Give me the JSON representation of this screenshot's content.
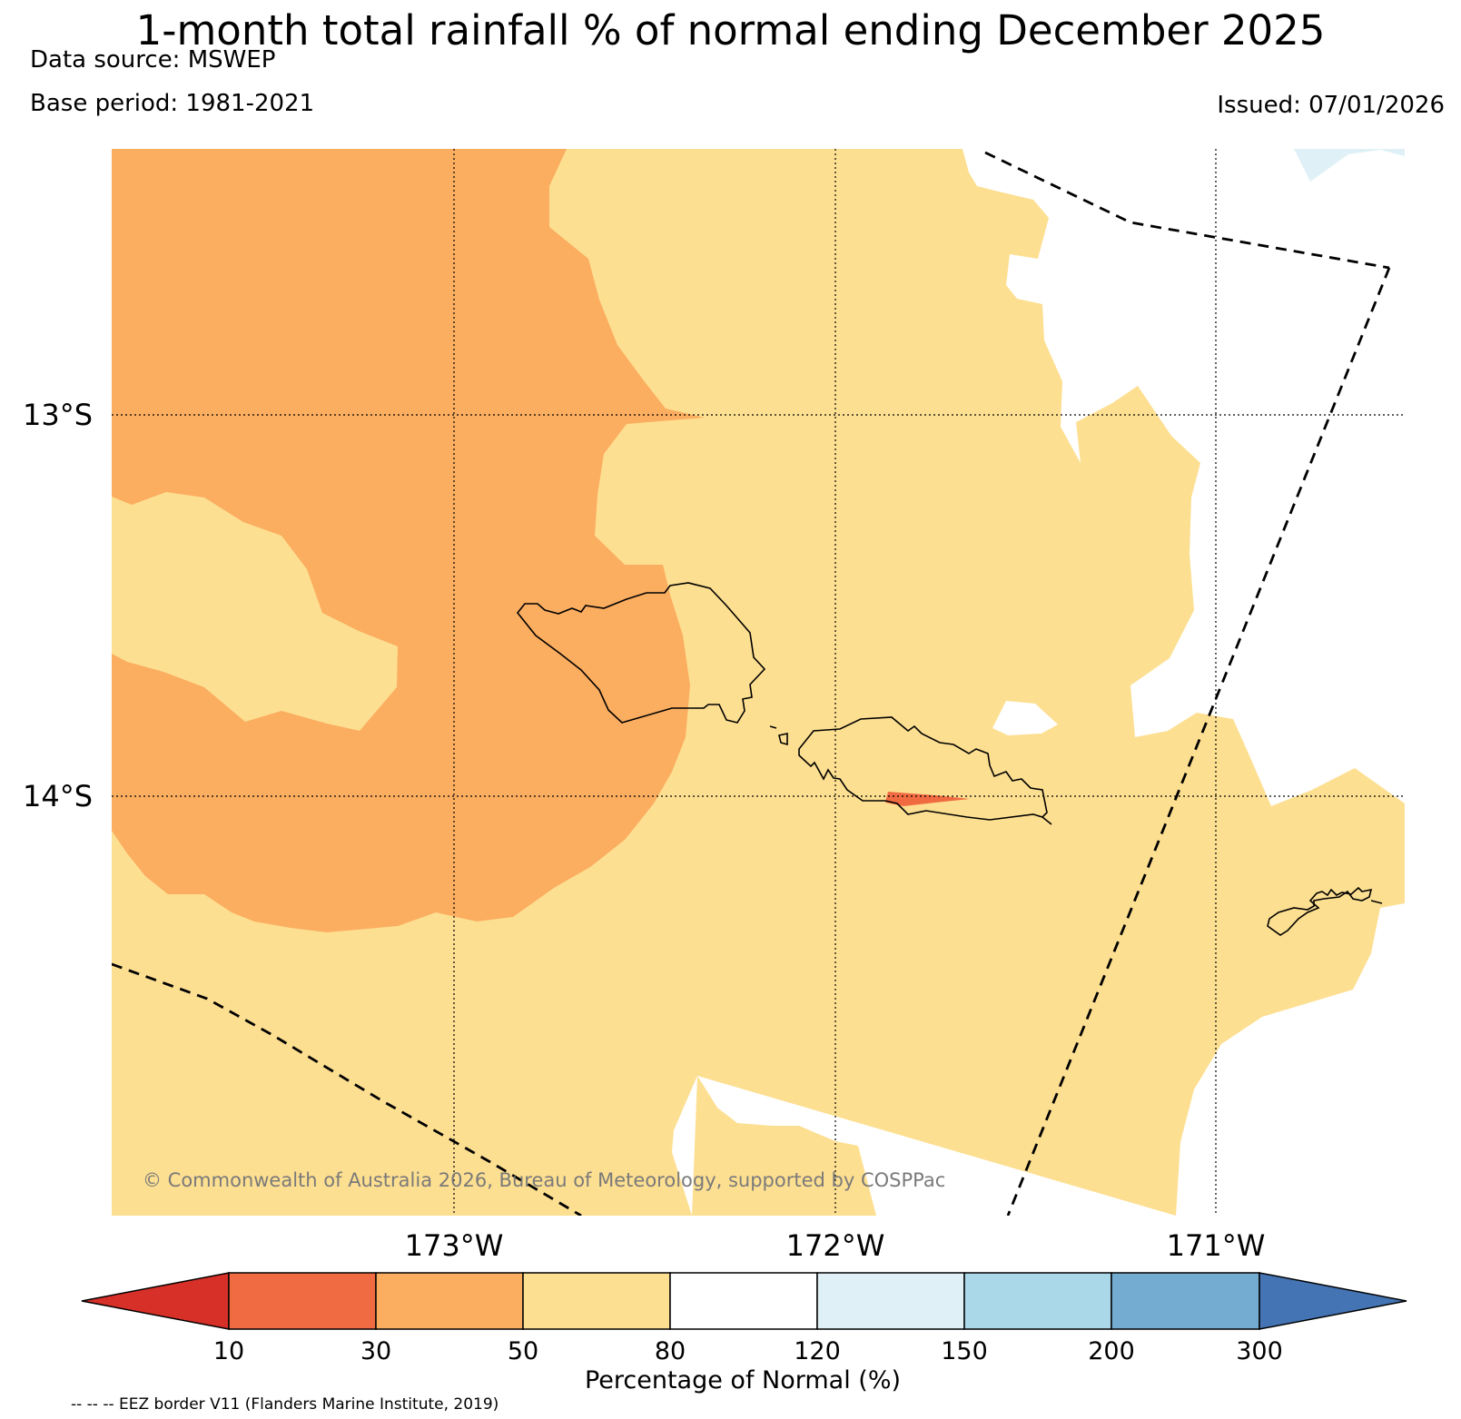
{
  "header": {
    "title": "1-month total rainfall % of normal ending December 2025",
    "data_source": "Data source: MSWEP",
    "base_period": "Base period: 1981-2021",
    "issued": "Issued: 07/01/2026"
  },
  "map": {
    "lat_labels": [
      "13°S",
      "14°S"
    ],
    "lon_labels": [
      "173°W",
      "172°W",
      "171°W"
    ],
    "copyright": "© Commonwealth of Australia 2026, Bureau of Meteorology, supported by COSPPac",
    "colors": {
      "class_50_80": "#fddf91",
      "class_30_50": "#fbad60",
      "class_10_30": "#f06b42",
      "class_120_150": "#dff1f6",
      "ocean_normal": "#ffffff",
      "coastline": "#000000",
      "gridline": "#000000"
    }
  },
  "colorbar": {
    "label": "Percentage of Normal (%)",
    "ticks": [
      "10",
      "30",
      "50",
      "80",
      "120",
      "150",
      "200",
      "300"
    ],
    "colors": {
      "below_10": "#d73028",
      "c10_30": "#f06b42",
      "c30_50": "#fbad60",
      "c50_80": "#fddf91",
      "c80_120": "#ffffff",
      "c120_150": "#dff1f6",
      "c150_200": "#abd8e8",
      "c200_300": "#74abd0",
      "above_300": "#4474b3"
    }
  },
  "footer": {
    "eez_note": "-- -- -- EEZ border V11 (Flanders Marine Institute, 2019)"
  }
}
